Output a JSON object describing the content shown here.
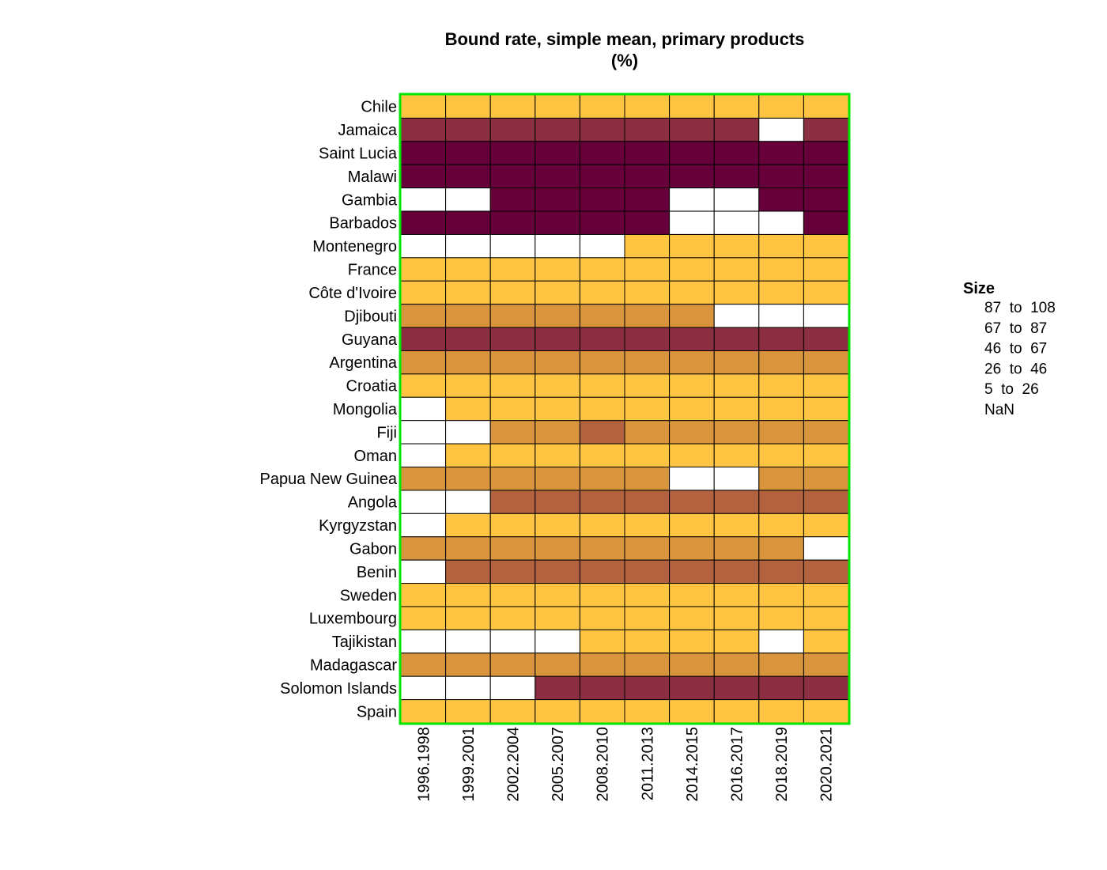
{
  "chart_data": {
    "type": "heatmap",
    "title": "Bound rate, simple mean, primary products",
    "subtitle": "(%)",
    "rows": [
      "Chile",
      "Jamaica",
      "Saint Lucia",
      "Malawi",
      "Gambia",
      "Barbados",
      "Montenegro",
      "France",
      "Côte d'Ivoire",
      "Djibouti",
      "Guyana",
      "Argentina",
      "Croatia",
      "Mongolia",
      "Fiji",
      "Oman",
      "Papua New Guinea",
      "Angola",
      "Kyrgyzstan",
      "Gabon",
      "Benin",
      "Sweden",
      "Luxembourg",
      "Tajikistan",
      "Madagascar",
      "Solomon Islands",
      "Spain"
    ],
    "columns": [
      "1996.1998",
      "1999.2001",
      "2002.2004",
      "2005.2007",
      "2008.2010",
      "2011.2013",
      "2014.2015",
      "2016.2017",
      "2018.2019",
      "2020.2021"
    ],
    "cells": [
      [
        "5 to 26",
        "5 to 26",
        "5 to 26",
        "5 to 26",
        "5 to 26",
        "5 to 26",
        "5 to 26",
        "5 to 26",
        "5 to 26",
        "5 to 26"
      ],
      [
        "67 to 87",
        "67 to 87",
        "67 to 87",
        "67 to 87",
        "67 to 87",
        "67 to 87",
        "67 to 87",
        "67 to 87",
        "NaN",
        "67 to 87"
      ],
      [
        "87 to 108",
        "87 to 108",
        "87 to 108",
        "87 to 108",
        "87 to 108",
        "87 to 108",
        "87 to 108",
        "87 to 108",
        "87 to 108",
        "87 to 108"
      ],
      [
        "87 to 108",
        "87 to 108",
        "87 to 108",
        "87 to 108",
        "87 to 108",
        "87 to 108",
        "87 to 108",
        "87 to 108",
        "87 to 108",
        "87 to 108"
      ],
      [
        "NaN",
        "NaN",
        "87 to 108",
        "87 to 108",
        "87 to 108",
        "87 to 108",
        "NaN",
        "NaN",
        "87 to 108",
        "87 to 108"
      ],
      [
        "87 to 108",
        "87 to 108",
        "87 to 108",
        "87 to 108",
        "87 to 108",
        "87 to 108",
        "NaN",
        "NaN",
        "NaN",
        "87 to 108"
      ],
      [
        "NaN",
        "NaN",
        "NaN",
        "NaN",
        "NaN",
        "5 to 26",
        "5 to 26",
        "5 to 26",
        "5 to 26",
        "5 to 26"
      ],
      [
        "5 to 26",
        "5 to 26",
        "5 to 26",
        "5 to 26",
        "5 to 26",
        "5 to 26",
        "5 to 26",
        "5 to 26",
        "5 to 26",
        "5 to 26"
      ],
      [
        "5 to 26",
        "5 to 26",
        "5 to 26",
        "5 to 26",
        "5 to 26",
        "5 to 26",
        "5 to 26",
        "5 to 26",
        "5 to 26",
        "5 to 26"
      ],
      [
        "26 to 46",
        "26 to 46",
        "26 to 46",
        "26 to 46",
        "26 to 46",
        "26 to 46",
        "26 to 46",
        "NaN",
        "NaN",
        "NaN"
      ],
      [
        "67 to 87",
        "67 to 87",
        "67 to 87",
        "67 to 87",
        "67 to 87",
        "67 to 87",
        "67 to 87",
        "67 to 87",
        "67 to 87",
        "67 to 87"
      ],
      [
        "26 to 46",
        "26 to 46",
        "26 to 46",
        "26 to 46",
        "26 to 46",
        "26 to 46",
        "26 to 46",
        "26 to 46",
        "26 to 46",
        "26 to 46"
      ],
      [
        "5 to 26",
        "5 to 26",
        "5 to 26",
        "5 to 26",
        "5 to 26",
        "5 to 26",
        "5 to 26",
        "5 to 26",
        "5 to 26",
        "5 to 26"
      ],
      [
        "NaN",
        "5 to 26",
        "5 to 26",
        "5 to 26",
        "5 to 26",
        "5 to 26",
        "5 to 26",
        "5 to 26",
        "5 to 26",
        "5 to 26"
      ],
      [
        "NaN",
        "NaN",
        "26 to 46",
        "26 to 46",
        "46 to 67",
        "26 to 46",
        "26 to 46",
        "26 to 46",
        "26 to 46",
        "26 to 46"
      ],
      [
        "NaN",
        "5 to 26",
        "5 to 26",
        "5 to 26",
        "5 to 26",
        "5 to 26",
        "5 to 26",
        "5 to 26",
        "5 to 26",
        "5 to 26"
      ],
      [
        "26 to 46",
        "26 to 46",
        "26 to 46",
        "26 to 46",
        "26 to 46",
        "26 to 46",
        "NaN",
        "NaN",
        "26 to 46",
        "26 to 46"
      ],
      [
        "NaN",
        "NaN",
        "46 to 67",
        "46 to 67",
        "46 to 67",
        "46 to 67",
        "46 to 67",
        "46 to 67",
        "46 to 67",
        "46 to 67"
      ],
      [
        "NaN",
        "5 to 26",
        "5 to 26",
        "5 to 26",
        "5 to 26",
        "5 to 26",
        "5 to 26",
        "5 to 26",
        "5 to 26",
        "5 to 26"
      ],
      [
        "26 to 46",
        "26 to 46",
        "26 to 46",
        "26 to 46",
        "26 to 46",
        "26 to 46",
        "26 to 46",
        "26 to 46",
        "26 to 46",
        "NaN"
      ],
      [
        "NaN",
        "46 to 67",
        "46 to 67",
        "46 to 67",
        "46 to 67",
        "46 to 67",
        "46 to 67",
        "46 to 67",
        "46 to 67",
        "46 to 67"
      ],
      [
        "5 to 26",
        "5 to 26",
        "5 to 26",
        "5 to 26",
        "5 to 26",
        "5 to 26",
        "5 to 26",
        "5 to 26",
        "5 to 26",
        "5 to 26"
      ],
      [
        "5 to 26",
        "5 to 26",
        "5 to 26",
        "5 to 26",
        "5 to 26",
        "5 to 26",
        "5 to 26",
        "5 to 26",
        "5 to 26",
        "5 to 26"
      ],
      [
        "NaN",
        "NaN",
        "NaN",
        "NaN",
        "5 to 26",
        "5 to 26",
        "5 to 26",
        "5 to 26",
        "NaN",
        "5 to 26"
      ],
      [
        "26 to 46",
        "26 to 46",
        "26 to 46",
        "26 to 46",
        "26 to 46",
        "26 to 46",
        "26 to 46",
        "26 to 46",
        "26 to 46",
        "26 to 46"
      ],
      [
        "NaN",
        "NaN",
        "NaN",
        "67 to 87",
        "67 to 87",
        "67 to 87",
        "67 to 87",
        "67 to 87",
        "67 to 87",
        "67 to 87"
      ],
      [
        "5 to 26",
        "5 to 26",
        "5 to 26",
        "5 to 26",
        "5 to 26",
        "5 to 26",
        "5 to 26",
        "5 to 26",
        "5 to 26",
        "5 to 26"
      ]
    ],
    "legend": {
      "title": "Size",
      "placement": "right",
      "bins": [
        {
          "label": "87  to  108",
          "color": "#67003a"
        },
        {
          "label": "67  to  87",
          "color": "#8b2e41"
        },
        {
          "label": "46  to  67",
          "color": "#b36240"
        },
        {
          "label": "26  to  46",
          "color": "#d9943e"
        },
        {
          "label": "5  to  26",
          "color": "#ffc542"
        },
        {
          "label": "NaN",
          "color": "#ffffff"
        }
      ]
    },
    "grid": true,
    "frame_color": "#00e600",
    "cell_border_color": "#000000"
  }
}
